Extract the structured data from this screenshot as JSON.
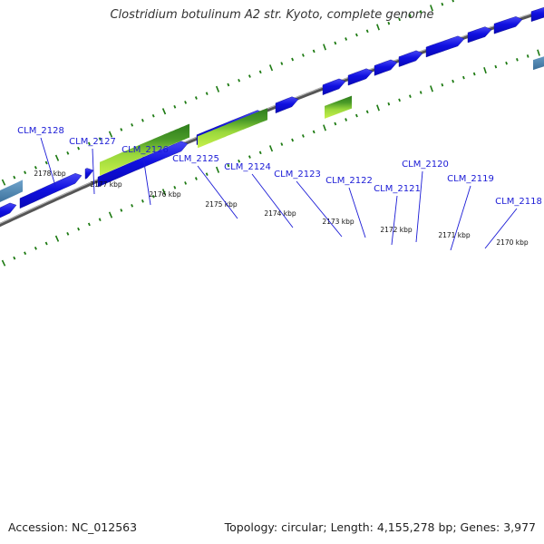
{
  "title": "Clostridium botulinum A2 str. Kyoto, complete genome",
  "footer": {
    "accession": "Accession: NC_012563",
    "summary": "Topology: circular; Length: 4,155,278 bp; Genes: 3,977"
  },
  "colors": {
    "cds": "#1010e0",
    "cds_light": "#6a6af5",
    "green_dark": "#2e7d1c",
    "green_light": "#c8f04a",
    "backbone": "#6b6b6b",
    "dots": "#1d7a12",
    "label": "#1a1ad6",
    "teal": "#4a86b5"
  },
  "gene_labels": [
    "CLM_2128",
    "CLM_2127",
    "CLM_2126",
    "CLM_2125",
    "CLM_2124",
    "CLM_2123",
    "CLM_2122",
    "CLM_2121",
    "CLM_2120",
    "CLM_2119",
    "CLM_2118"
  ],
  "tick_labels": [
    "2178 kbp",
    "2177 kbp",
    "2176 kbp",
    "2175 kbp",
    "2174 kbp",
    "2173 kbp",
    "2172 kbp",
    "2171 kbp",
    "2170 kbp"
  ]
}
